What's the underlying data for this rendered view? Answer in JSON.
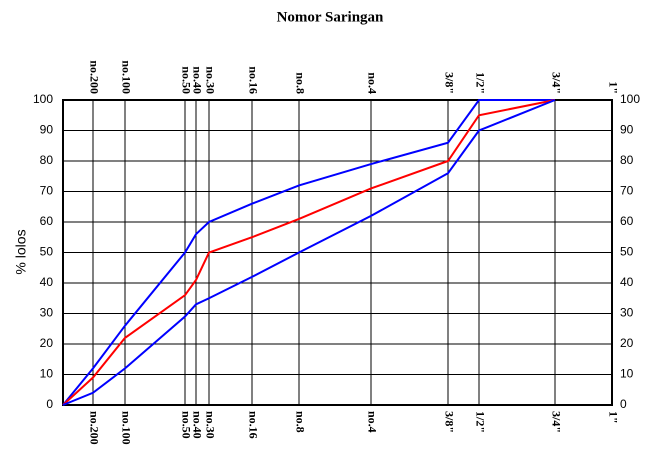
{
  "chart_data": {
    "type": "line",
    "title": "Nomor Saringan",
    "ylabel": "% lolos",
    "categories": [
      null,
      "no.200",
      "no.100",
      "no.50",
      "no.40",
      "no.30",
      "no.16",
      "no.8",
      "no.4",
      "3/8\"",
      "1/2\"",
      "3/4\"",
      "1\""
    ],
    "series": [
      {
        "name": null,
        "color": "#0000ff",
        "values": [
          0,
          12,
          26,
          50,
          56,
          60,
          66,
          72,
          79,
          86,
          100,
          100,
          null
        ]
      },
      {
        "name": null,
        "color": "#ff0000",
        "values": [
          0,
          9,
          22,
          36,
          41,
          50,
          55,
          61,
          71,
          80,
          95,
          100,
          null
        ]
      },
      {
        "name": null,
        "color": "#0000ff",
        "values": [
          0,
          4,
          12,
          29,
          33,
          35,
          42,
          50,
          62,
          76,
          90,
          100,
          null
        ]
      }
    ],
    "ylim": [
      0,
      100
    ],
    "yticks": [
      0,
      10,
      20,
      30,
      40,
      50,
      60,
      70,
      80,
      90,
      100
    ],
    "grid": true
  }
}
